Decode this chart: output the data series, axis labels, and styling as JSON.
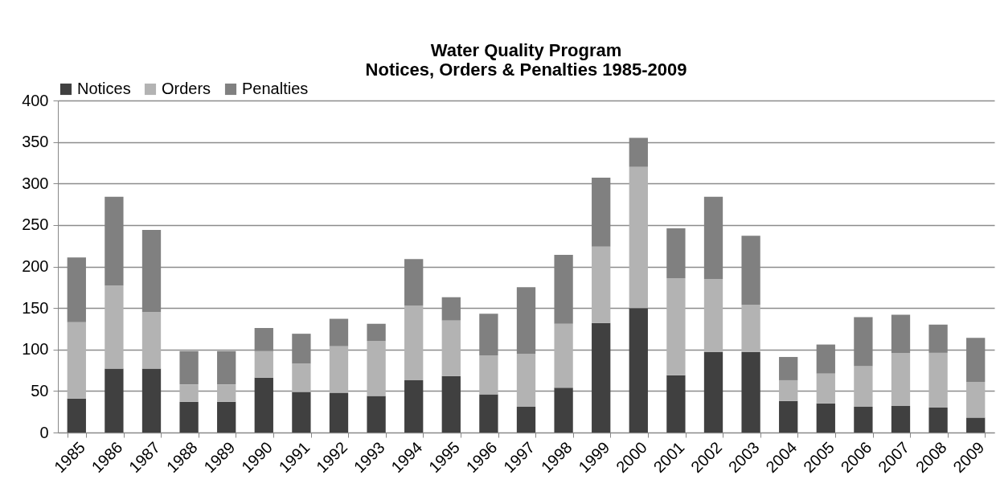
{
  "chart_data": {
    "type": "bar",
    "title": "Water Quality Program",
    "subtitle": "Notices, Orders & Penalties 1985-2009",
    "stacked": true,
    "legend": "top",
    "grid": "y",
    "categories": [
      "1985",
      "1986",
      "1987",
      "1988",
      "1989",
      "1990",
      "1991",
      "1992",
      "1993",
      "1994",
      "1995",
      "1996",
      "1997",
      "1998",
      "1999",
      "2000",
      "2001",
      "2002",
      "2003",
      "2004",
      "2005",
      "2006",
      "2007",
      "2008",
      "2009"
    ],
    "ylim": [
      0,
      400
    ],
    "yticks": [
      0,
      50,
      100,
      150,
      200,
      250,
      300,
      350,
      400
    ],
    "series": [
      {
        "name": "Notices",
        "color": "#404040",
        "values": [
          41,
          77,
          77,
          37,
          37,
          66,
          49,
          48,
          44,
          63,
          68,
          46,
          31,
          54,
          132,
          150,
          69,
          97,
          97,
          38,
          35,
          31,
          32,
          30,
          18
        ]
      },
      {
        "name": "Orders",
        "color": "#b3b3b3",
        "values": [
          92,
          100,
          68,
          21,
          21,
          32,
          34,
          56,
          66,
          90,
          67,
          47,
          64,
          77,
          92,
          170,
          117,
          88,
          57,
          25,
          36,
          49,
          64,
          66,
          43
        ]
      },
      {
        "name": "Penalties",
        "color": "#808080",
        "values": [
          78,
          107,
          99,
          40,
          40,
          28,
          36,
          33,
          21,
          56,
          28,
          50,
          80,
          83,
          83,
          35,
          60,
          99,
          83,
          28,
          35,
          59,
          46,
          34,
          53
        ]
      }
    ]
  }
}
